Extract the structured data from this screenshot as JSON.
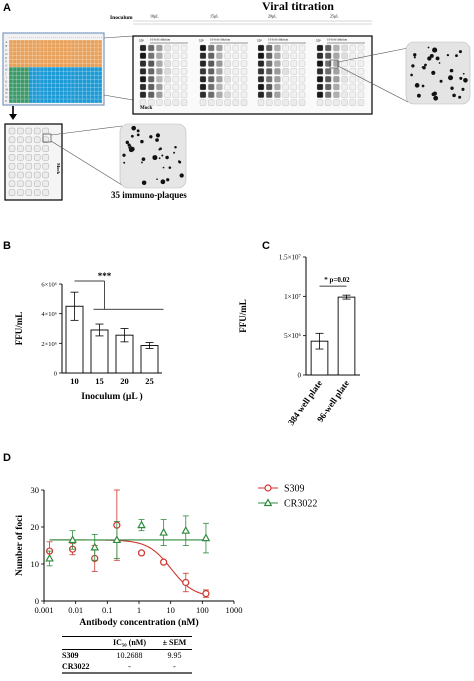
{
  "panel_a": {
    "letter": "A",
    "title": "Viral titration",
    "inoculum_label": "Inoculum",
    "volumes": [
      "10µL",
      "15µL",
      "20µL",
      "25µL"
    ],
    "row_label": "10¹",
    "dilution_label": "10-fold dilution",
    "mock_label": "Mock",
    "plaques_caption": "35 immuno-plaques",
    "plate_row_letters": [
      "A",
      "B",
      "C",
      "D",
      "E",
      "F",
      "G",
      "H",
      "I",
      "J",
      "K",
      "L",
      "M",
      "N",
      "O",
      "P"
    ],
    "colors": {
      "orange": "#e8a15a",
      "blue": "#1b9ad6",
      "green": "#3c9a6a"
    }
  },
  "chart_data": [
    {
      "panel": "B",
      "type": "bar",
      "categories": [
        "10",
        "15",
        "20",
        "25"
      ],
      "values": [
        4500000.0,
        2900000.0,
        2550000.0,
        1850000.0
      ],
      "errors": [
        950000.0,
        400000.0,
        450000.0,
        200000.0
      ],
      "ylabel": "FFU/mL",
      "xlabel": "Inoculum (µL )",
      "ylim": [
        0,
        6000000.0
      ],
      "yticks": [
        {
          "v": 0,
          "label": "0"
        },
        {
          "v": 2000000.0,
          "label": "2×10⁶"
        },
        {
          "v": 4000000.0,
          "label": "4×10⁶"
        },
        {
          "v": 6000000.0,
          "label": "6×10⁶"
        }
      ],
      "annotation": "***"
    },
    {
      "panel": "C",
      "type": "bar",
      "categories": [
        "384 well plate",
        "96-well plate"
      ],
      "values": [
        4300000.0,
        9900000.0
      ],
      "errors": [
        1000000.0,
        250000.0
      ],
      "ylabel": "FFU/mL",
      "ylim": [
        0,
        15000000.0
      ],
      "yticks": [
        {
          "v": 0,
          "label": "0"
        },
        {
          "v": 5000000.0,
          "label": "5×10⁶"
        },
        {
          "v": 10000000.0,
          "label": "1×10⁷"
        },
        {
          "v": 15000000.0,
          "label": "1.5×10⁷"
        }
      ],
      "annotation": "* p=0.02"
    },
    {
      "panel": "D",
      "type": "scatter",
      "xscale": "log",
      "xlabel": "Antibody concentration (nM)",
      "ylabel": "Number of foci",
      "xlim": [
        0.001,
        1000
      ],
      "ylim": [
        0,
        30
      ],
      "xticks": [
        {
          "v": 0.001,
          "label": "0.001"
        },
        {
          "v": 0.01,
          "label": "0.01"
        },
        {
          "v": 0.1,
          "label": "0.1"
        },
        {
          "v": 1,
          "label": "1"
        },
        {
          "v": 10,
          "label": "10"
        },
        {
          "v": 100,
          "label": "100"
        },
        {
          "v": 1000,
          "label": "1000"
        }
      ],
      "yticks": [
        0,
        10,
        20,
        30
      ],
      "series": [
        {
          "name": "S309",
          "color": "#d0342c",
          "marker": "circle",
          "points": [
            {
              "x": 0.0015,
              "y": 13.5,
              "e": 2.5
            },
            {
              "x": 0.008,
              "y": 14,
              "e": 1.5
            },
            {
              "x": 0.04,
              "y": 11.5,
              "e": 3.5
            },
            {
              "x": 0.2,
              "y": 20.5,
              "e": 9.5
            },
            {
              "x": 1.2,
              "y": 13,
              "e": 0.5
            },
            {
              "x": 6,
              "y": 10.5,
              "e": 0.5
            },
            {
              "x": 30,
              "y": 5,
              "e": 2.5
            },
            {
              "x": 130,
              "y": 2,
              "e": 1
            }
          ],
          "fit": {
            "top": 16.5,
            "bottom": 1,
            "ic50": 10.2688,
            "hill": 1.2
          }
        },
        {
          "name": "CR3022",
          "color": "#2e8b3e",
          "marker": "triangle",
          "points": [
            {
              "x": 0.0015,
              "y": 11.5,
              "e": 2
            },
            {
              "x": 0.008,
              "y": 16.5,
              "e": 2.5
            },
            {
              "x": 0.04,
              "y": 14.5,
              "e": 3.5
            },
            {
              "x": 0.2,
              "y": 16.5,
              "e": 5
            },
            {
              "x": 1.2,
              "y": 20.5,
              "e": 1.5
            },
            {
              "x": 6,
              "y": 18.5,
              "e": 3.5
            },
            {
              "x": 30,
              "y": 19,
              "e": 4
            },
            {
              "x": 130,
              "y": 17,
              "e": 4
            }
          ],
          "fit": {
            "flat": 16.5
          }
        }
      ]
    }
  ],
  "panel_letters": {
    "b": "B",
    "c": "C",
    "d": "D"
  },
  "table": {
    "headers": [
      "",
      "IC₅₀ (nM)",
      "± SEM"
    ],
    "rows": [
      [
        "S309",
        "10.2688",
        "9.95"
      ],
      [
        "CR3022",
        "-",
        "-"
      ]
    ]
  }
}
